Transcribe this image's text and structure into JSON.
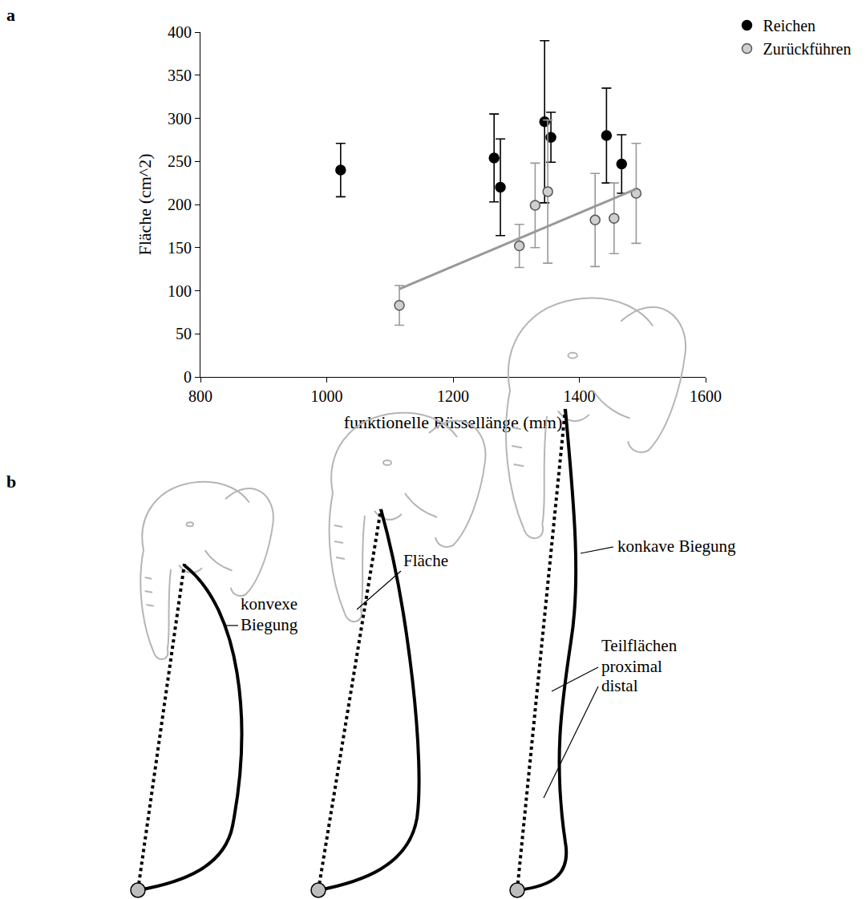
{
  "chart_data": {
    "type": "scatter",
    "panel": "a",
    "x_label": "funktionelle Rüssellänge (mm)",
    "y_label": "Fläche (cm^2)",
    "xlim": [
      800,
      1600
    ],
    "xticks": [
      800,
      1000,
      1200,
      1400,
      1600
    ],
    "ylim": [
      0,
      400
    ],
    "yticks": [
      0,
      50,
      100,
      150,
      200,
      250,
      300,
      350,
      400
    ],
    "grid": false,
    "legend": "top right",
    "series": [
      {
        "name": "Reichen",
        "color": "#000000",
        "marker": "circle",
        "x": [
          1022,
          1265,
          1275,
          1345,
          1355,
          1443,
          1467
        ],
        "values": [
          240,
          254,
          220,
          296,
          278,
          280,
          247
        ],
        "error": [
          31,
          51,
          56,
          94,
          29,
          55,
          34
        ]
      },
      {
        "name": "Zurückführen",
        "color": "#999999",
        "marker": "circle",
        "x": [
          1115,
          1305,
          1330,
          1350,
          1425,
          1455,
          1490
        ],
        "values": [
          83,
          152,
          199,
          215,
          182,
          184,
          213
        ],
        "error": [
          23,
          25,
          49,
          83,
          54,
          41,
          58
        ],
        "trendline": {
          "x": [
            1115,
            1490
          ],
          "values": [
            102,
            218
          ]
        }
      }
    ]
  },
  "diagram": {
    "panel": "b",
    "convex_label": "konvexe Biegung",
    "area_label": "Fläche",
    "concave_label": "konkave Biegung",
    "subareas_label": "Teilflächen",
    "proximal_label": "proximal",
    "distal_label": "distal"
  }
}
